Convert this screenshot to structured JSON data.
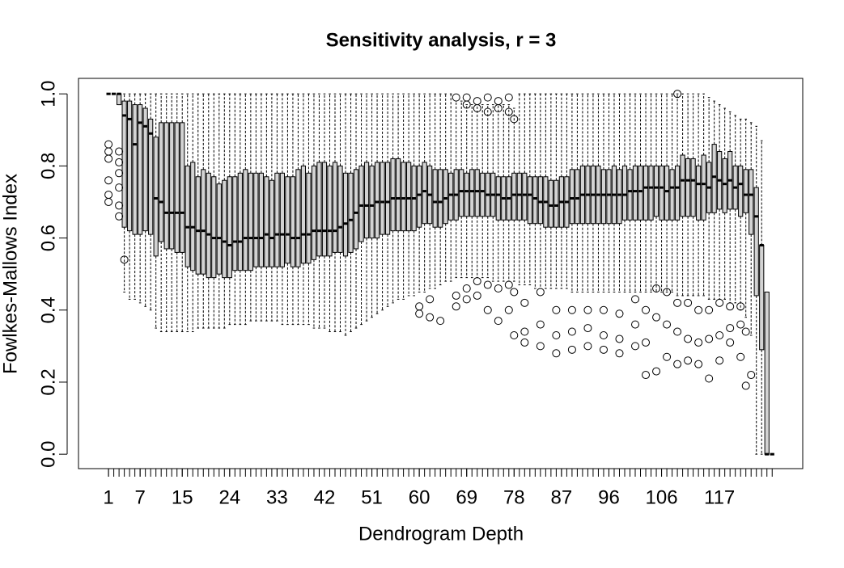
{
  "chart_data": {
    "type": "boxplot",
    "title": "Sensitivity analysis, r = 3",
    "xlabel": "Dendrogram Depth",
    "ylabel": "Fowlkes-Mallows Index",
    "xlim": [
      -4.7,
      132.8
    ],
    "ylim": [
      -0.04,
      1.043
    ],
    "xticks": [
      1,
      7,
      15,
      24,
      33,
      42,
      51,
      60,
      69,
      78,
      87,
      96,
      106,
      117
    ],
    "yticks": [
      {
        "value": 0,
        "label": "0.0"
      },
      0.2,
      0.4,
      0.6,
      0.8,
      {
        "value": 1,
        "label": "1.0"
      }
    ],
    "color": "#d3d3d3",
    "x": [
      1,
      2,
      3,
      4,
      5,
      6,
      7,
      8,
      9,
      10,
      11,
      12,
      13,
      14,
      15,
      16,
      17,
      18,
      19,
      20,
      21,
      22,
      23,
      24,
      25,
      26,
      27,
      28,
      29,
      30,
      31,
      32,
      33,
      34,
      35,
      36,
      37,
      38,
      39,
      40,
      41,
      42,
      43,
      44,
      45,
      46,
      47,
      48,
      49,
      50,
      51,
      52,
      53,
      54,
      55,
      56,
      57,
      58,
      59,
      60,
      61,
      62,
      63,
      64,
      65,
      66,
      67,
      68,
      69,
      70,
      71,
      72,
      73,
      74,
      75,
      76,
      77,
      78,
      79,
      80,
      81,
      82,
      83,
      84,
      85,
      86,
      87,
      88,
      89,
      90,
      91,
      92,
      93,
      94,
      95,
      96,
      97,
      98,
      99,
      100,
      101,
      102,
      103,
      104,
      105,
      106,
      107,
      108,
      109,
      110,
      111,
      112,
      113,
      114,
      115,
      116,
      117,
      118,
      119,
      120,
      121,
      122,
      123,
      124,
      125,
      126,
      127
    ],
    "boxes": [
      [
        1,
        1,
        1,
        1,
        1
      ],
      [
        1,
        1,
        1,
        1,
        1
      ],
      [
        0.97,
        0.97,
        1,
        1,
        1
      ],
      [
        0.45,
        0.63,
        0.94,
        0.98,
        1
      ],
      [
        0.43,
        0.62,
        0.93,
        0.98,
        1
      ],
      [
        0.43,
        0.61,
        0.86,
        0.97,
        1
      ],
      [
        0.42,
        0.61,
        0.92,
        0.97,
        1
      ],
      [
        0.41,
        0.62,
        0.91,
        0.96,
        1
      ],
      [
        0.4,
        0.61,
        0.89,
        0.93,
        1
      ],
      [
        0.35,
        0.55,
        0.71,
        0.88,
        1
      ],
      [
        0.34,
        0.59,
        0.7,
        0.92,
        1
      ],
      [
        0.34,
        0.57,
        0.67,
        0.92,
        1
      ],
      [
        0.34,
        0.57,
        0.67,
        0.92,
        1
      ],
      [
        0.34,
        0.56,
        0.67,
        0.92,
        1
      ],
      [
        0.34,
        0.56,
        0.67,
        0.92,
        1
      ],
      [
        0.34,
        0.52,
        0.63,
        0.8,
        1
      ],
      [
        0.34,
        0.51,
        0.63,
        0.81,
        1
      ],
      [
        0.35,
        0.5,
        0.62,
        0.77,
        1
      ],
      [
        0.35,
        0.5,
        0.62,
        0.79,
        1
      ],
      [
        0.35,
        0.49,
        0.61,
        0.78,
        1
      ],
      [
        0.35,
        0.49,
        0.6,
        0.77,
        1
      ],
      [
        0.35,
        0.5,
        0.6,
        0.75,
        1
      ],
      [
        0.35,
        0.49,
        0.59,
        0.76,
        1
      ],
      [
        0.36,
        0.49,
        0.58,
        0.77,
        1
      ],
      [
        0.36,
        0.51,
        0.59,
        0.77,
        1
      ],
      [
        0.36,
        0.51,
        0.59,
        0.78,
        1
      ],
      [
        0.36,
        0.51,
        0.6,
        0.79,
        1
      ],
      [
        0.37,
        0.51,
        0.6,
        0.78,
        1
      ],
      [
        0.37,
        0.52,
        0.6,
        0.78,
        1
      ],
      [
        0.37,
        0.52,
        0.6,
        0.78,
        1
      ],
      [
        0.37,
        0.52,
        0.61,
        0.77,
        1
      ],
      [
        0.37,
        0.52,
        0.6,
        0.76,
        1
      ],
      [
        0.37,
        0.52,
        0.61,
        0.78,
        1
      ],
      [
        0.36,
        0.52,
        0.61,
        0.78,
        1
      ],
      [
        0.36,
        0.53,
        0.61,
        0.77,
        1
      ],
      [
        0.36,
        0.52,
        0.6,
        0.77,
        1
      ],
      [
        0.36,
        0.52,
        0.6,
        0.79,
        1
      ],
      [
        0.36,
        0.53,
        0.61,
        0.8,
        1
      ],
      [
        0.36,
        0.53,
        0.61,
        0.78,
        1
      ],
      [
        0.35,
        0.54,
        0.62,
        0.8,
        1
      ],
      [
        0.35,
        0.55,
        0.62,
        0.81,
        1
      ],
      [
        0.35,
        0.55,
        0.62,
        0.81,
        1
      ],
      [
        0.34,
        0.55,
        0.62,
        0.8,
        1
      ],
      [
        0.34,
        0.56,
        0.62,
        0.81,
        1
      ],
      [
        0.34,
        0.56,
        0.63,
        0.8,
        1
      ],
      [
        0.33,
        0.55,
        0.64,
        0.78,
        1
      ],
      [
        0.34,
        0.56,
        0.65,
        0.78,
        1
      ],
      [
        0.35,
        0.57,
        0.67,
        0.79,
        1
      ],
      [
        0.36,
        0.59,
        0.69,
        0.8,
        1
      ],
      [
        0.37,
        0.6,
        0.69,
        0.81,
        1
      ],
      [
        0.38,
        0.6,
        0.69,
        0.8,
        1
      ],
      [
        0.39,
        0.6,
        0.7,
        0.81,
        1
      ],
      [
        0.4,
        0.61,
        0.7,
        0.81,
        1
      ],
      [
        0.41,
        0.61,
        0.7,
        0.81,
        1
      ],
      [
        0.42,
        0.62,
        0.71,
        0.82,
        1
      ],
      [
        0.43,
        0.62,
        0.71,
        0.82,
        1
      ],
      [
        0.43,
        0.62,
        0.71,
        0.81,
        1
      ],
      [
        0.44,
        0.62,
        0.71,
        0.81,
        1
      ],
      [
        0.44,
        0.62,
        0.71,
        0.8,
        1
      ],
      [
        0.45,
        0.63,
        0.72,
        0.8,
        1
      ],
      [
        0.45,
        0.64,
        0.73,
        0.81,
        1
      ],
      [
        0.46,
        0.64,
        0.72,
        0.8,
        1
      ],
      [
        0.46,
        0.63,
        0.7,
        0.79,
        1
      ],
      [
        0.47,
        0.63,
        0.7,
        0.79,
        1
      ],
      [
        0.48,
        0.64,
        0.71,
        0.79,
        1
      ],
      [
        0.48,
        0.65,
        0.72,
        0.78,
        1
      ],
      [
        0.49,
        0.65,
        0.72,
        0.79,
        0.98
      ],
      [
        0.49,
        0.66,
        0.73,
        0.79,
        0.98
      ],
      [
        0.49,
        0.66,
        0.73,
        0.78,
        0.97
      ],
      [
        0.49,
        0.66,
        0.73,
        0.79,
        0.97
      ],
      [
        0.49,
        0.66,
        0.73,
        0.79,
        0.97
      ],
      [
        0.49,
        0.66,
        0.73,
        0.78,
        0.97
      ],
      [
        0.49,
        0.66,
        0.72,
        0.78,
        0.97
      ],
      [
        0.48,
        0.66,
        0.72,
        0.78,
        0.97
      ],
      [
        0.48,
        0.65,
        0.72,
        0.77,
        0.97
      ],
      [
        0.48,
        0.65,
        0.71,
        0.77,
        0.97
      ],
      [
        0.48,
        0.65,
        0.71,
        0.77,
        0.97
      ],
      [
        0.48,
        0.65,
        0.72,
        0.78,
        0.96
      ],
      [
        0.47,
        0.65,
        0.72,
        0.78,
        1
      ],
      [
        0.47,
        0.65,
        0.72,
        0.78,
        1
      ],
      [
        0.47,
        0.64,
        0.72,
        0.77,
        1
      ],
      [
        0.46,
        0.64,
        0.71,
        0.77,
        1
      ],
      [
        0.46,
        0.64,
        0.7,
        0.77,
        1
      ],
      [
        0.46,
        0.63,
        0.7,
        0.77,
        1
      ],
      [
        0.46,
        0.63,
        0.69,
        0.76,
        1
      ],
      [
        0.46,
        0.63,
        0.69,
        0.76,
        1
      ],
      [
        0.46,
        0.63,
        0.7,
        0.77,
        1
      ],
      [
        0.46,
        0.63,
        0.7,
        0.77,
        1
      ],
      [
        0.45,
        0.64,
        0.71,
        0.79,
        1
      ],
      [
        0.45,
        0.64,
        0.71,
        0.79,
        1
      ],
      [
        0.45,
        0.64,
        0.72,
        0.8,
        1
      ],
      [
        0.45,
        0.64,
        0.72,
        0.8,
        1
      ],
      [
        0.45,
        0.64,
        0.72,
        0.8,
        1
      ],
      [
        0.45,
        0.64,
        0.72,
        0.8,
        1
      ],
      [
        0.45,
        0.64,
        0.72,
        0.79,
        1
      ],
      [
        0.45,
        0.64,
        0.72,
        0.79,
        1
      ],
      [
        0.45,
        0.64,
        0.72,
        0.8,
        1
      ],
      [
        0.45,
        0.64,
        0.72,
        0.79,
        1
      ],
      [
        0.45,
        0.65,
        0.72,
        0.8,
        1
      ],
      [
        0.45,
        0.65,
        0.73,
        0.79,
        1
      ],
      [
        0.45,
        0.65,
        0.73,
        0.8,
        1
      ],
      [
        0.45,
        0.65,
        0.73,
        0.8,
        1
      ],
      [
        0.45,
        0.65,
        0.74,
        0.8,
        1
      ],
      [
        0.45,
        0.65,
        0.74,
        0.8,
        1
      ],
      [
        0.45,
        0.66,
        0.74,
        0.8,
        1
      ],
      [
        0.45,
        0.65,
        0.74,
        0.8,
        1
      ],
      [
        0.45,
        0.65,
        0.73,
        0.8,
        1
      ],
      [
        0.45,
        0.65,
        0.74,
        0.79,
        1
      ],
      [
        0.44,
        0.65,
        0.74,
        0.8,
        1
      ],
      [
        0.44,
        0.66,
        0.76,
        0.83,
        1
      ],
      [
        0.44,
        0.66,
        0.76,
        0.82,
        1
      ],
      [
        0.44,
        0.66,
        0.76,
        0.82,
        1
      ],
      [
        0.44,
        0.65,
        0.75,
        0.8,
        1
      ],
      [
        0.44,
        0.65,
        0.75,
        0.83,
        1
      ],
      [
        0.43,
        0.67,
        0.74,
        0.81,
        0.99
      ],
      [
        0.43,
        0.67,
        0.77,
        0.86,
        0.98
      ],
      [
        0.43,
        0.68,
        0.76,
        0.84,
        0.97
      ],
      [
        0.43,
        0.67,
        0.75,
        0.82,
        0.96
      ],
      [
        0.42,
        0.68,
        0.76,
        0.84,
        0.95
      ],
      [
        0.42,
        0.68,
        0.74,
        0.8,
        0.94
      ],
      [
        0.4,
        0.66,
        0.75,
        0.8,
        0.93
      ],
      [
        0.38,
        0.67,
        0.72,
        0.79,
        0.93
      ],
      [
        0.33,
        0.61,
        0.72,
        0.79,
        0.92
      ],
      [
        0,
        0.44,
        0.66,
        0.74,
        0.91
      ],
      [
        0,
        0.29,
        0.58,
        0.58,
        0.87
      ],
      [
        0,
        0,
        0,
        0.45,
        0.45
      ],
      [
        0,
        0,
        0,
        0,
        0
      ]
    ],
    "outliers": [
      [
        1,
        0.86
      ],
      [
        1,
        0.84
      ],
      [
        1,
        0.82
      ],
      [
        1,
        0.76
      ],
      [
        1,
        0.72
      ],
      [
        1,
        0.7
      ],
      [
        3,
        0.84
      ],
      [
        3,
        0.81
      ],
      [
        3,
        0.78
      ],
      [
        3,
        0.74
      ],
      [
        3,
        0.69
      ],
      [
        3,
        0.66
      ],
      [
        4,
        0.54
      ],
      [
        60,
        0.41
      ],
      [
        60,
        0.39
      ],
      [
        62,
        0.43
      ],
      [
        62,
        0.38
      ],
      [
        64,
        0.37
      ],
      [
        67,
        0.99
      ],
      [
        67,
        0.44
      ],
      [
        67,
        0.41
      ],
      [
        69,
        0.99
      ],
      [
        69,
        0.97
      ],
      [
        69,
        0.46
      ],
      [
        69,
        0.43
      ],
      [
        71,
        0.98
      ],
      [
        71,
        0.96
      ],
      [
        71,
        0.48
      ],
      [
        71,
        0.44
      ],
      [
        73,
        0.99
      ],
      [
        73,
        0.95
      ],
      [
        73,
        0.47
      ],
      [
        73,
        0.4
      ],
      [
        75,
        0.98
      ],
      [
        75,
        0.96
      ],
      [
        75,
        0.46
      ],
      [
        75,
        0.37
      ],
      [
        77,
        0.99
      ],
      [
        77,
        0.95
      ],
      [
        77,
        0.47
      ],
      [
        77,
        0.4
      ],
      [
        78,
        0.93
      ],
      [
        78,
        0.45
      ],
      [
        78,
        0.33
      ],
      [
        80,
        0.42
      ],
      [
        80,
        0.34
      ],
      [
        80,
        0.31
      ],
      [
        83,
        0.45
      ],
      [
        83,
        0.36
      ],
      [
        83,
        0.3
      ],
      [
        86,
        0.4
      ],
      [
        86,
        0.33
      ],
      [
        86,
        0.28
      ],
      [
        89,
        0.4
      ],
      [
        89,
        0.34
      ],
      [
        89,
        0.29
      ],
      [
        92,
        0.4
      ],
      [
        92,
        0.35
      ],
      [
        92,
        0.3
      ],
      [
        95,
        0.4
      ],
      [
        95,
        0.33
      ],
      [
        95,
        0.29
      ],
      [
        98,
        0.39
      ],
      [
        98,
        0.32
      ],
      [
        98,
        0.28
      ],
      [
        101,
        0.43
      ],
      [
        101,
        0.36
      ],
      [
        101,
        0.3
      ],
      [
        103,
        0.4
      ],
      [
        103,
        0.31
      ],
      [
        103,
        0.22
      ],
      [
        105,
        0.46
      ],
      [
        105,
        0.38
      ],
      [
        105,
        0.23
      ],
      [
        107,
        0.45
      ],
      [
        107,
        0.36
      ],
      [
        107,
        0.27
      ],
      [
        109,
        1
      ],
      [
        109,
        0.42
      ],
      [
        109,
        0.34
      ],
      [
        109,
        0.25
      ],
      [
        111,
        0.42
      ],
      [
        111,
        0.32
      ],
      [
        111,
        0.26
      ],
      [
        113,
        0.4
      ],
      [
        113,
        0.31
      ],
      [
        113,
        0.25
      ],
      [
        115,
        0.4
      ],
      [
        115,
        0.32
      ],
      [
        115,
        0.21
      ],
      [
        117,
        0.42
      ],
      [
        117,
        0.33
      ],
      [
        117,
        0.26
      ],
      [
        119,
        0.41
      ],
      [
        119,
        0.35
      ],
      [
        119,
        0.31
      ],
      [
        121,
        0.41
      ],
      [
        121,
        0.36
      ],
      [
        121,
        0.27
      ],
      [
        122,
        0.34
      ],
      [
        122,
        0.19
      ],
      [
        123,
        0.22
      ]
    ]
  }
}
